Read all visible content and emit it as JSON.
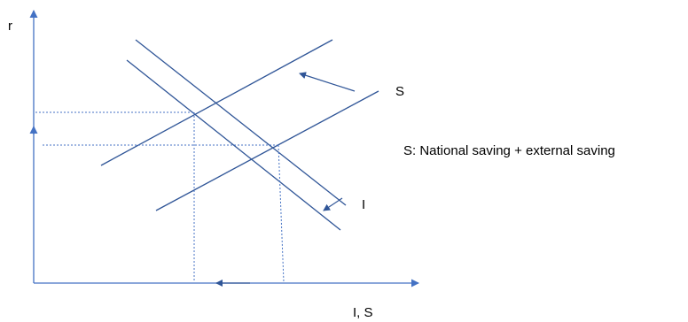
{
  "labels": {
    "y_axis": "r",
    "x_axis": "I, S",
    "saving_curve": "S",
    "investment_curve": "I",
    "legend": "S: National saving + external saving"
  },
  "colors": {
    "axis": "#4472C4",
    "curve": "#2F5597",
    "text": "#000000"
  }
}
